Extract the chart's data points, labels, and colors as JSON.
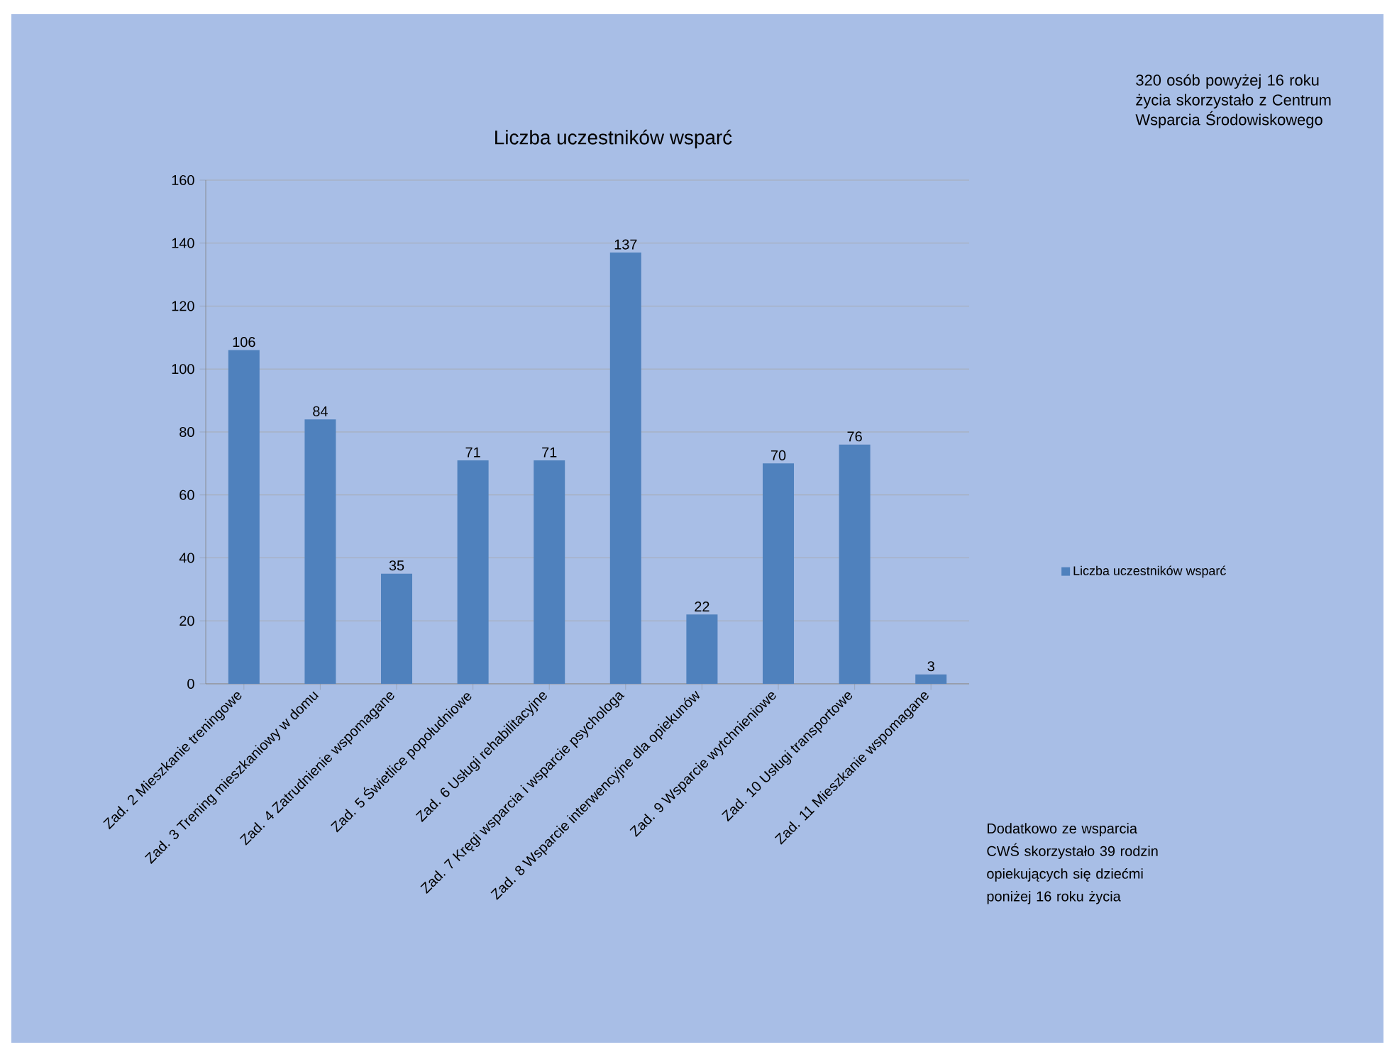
{
  "chart_data": {
    "type": "bar",
    "title": "Liczba uczestników wsparć",
    "categories": [
      "Zad. 2 Mieszkanie treningowe",
      "Zad. 3 Trening mieszkaniowy w domu",
      "Zad. 4 Zatrudnienie wspomagane",
      "Zad. 5 Świetlice popołudniowe",
      "Zad. 6 Usługi rehabilitacyjne",
      "Zad. 7 Kręgi wsparcia i wsparcie psychologa",
      "Zad. 8 Wsparcie interwencyjne dla opiekunów",
      "Zad. 9 Wsparcie wytchnieniowe",
      "Zad. 10 Usługi transportowe",
      "Zad. 11 Mieszkanie wspomagane"
    ],
    "series": [
      {
        "name": "Liczba uczestników wsparć",
        "color": "#4f81bd",
        "values": [
          106,
          84,
          35,
          71,
          71,
          137,
          22,
          70,
          76,
          3
        ]
      }
    ],
    "ylim": [
      0,
      160
    ],
    "yticks": [
      0,
      20,
      40,
      60,
      80,
      100,
      120,
      140,
      160
    ],
    "grid": "y",
    "legend": "right",
    "data_labels": true,
    "annotations": [
      "320 osób powyżej 16 roku życia skorzystało z Centrum Wsparcia Środowiskowego",
      "Dodatkowo ze wsparcia CWŚ skorzystało 39 rodzin opiekujących się dziećmi poniżej 16 roku życia"
    ]
  }
}
